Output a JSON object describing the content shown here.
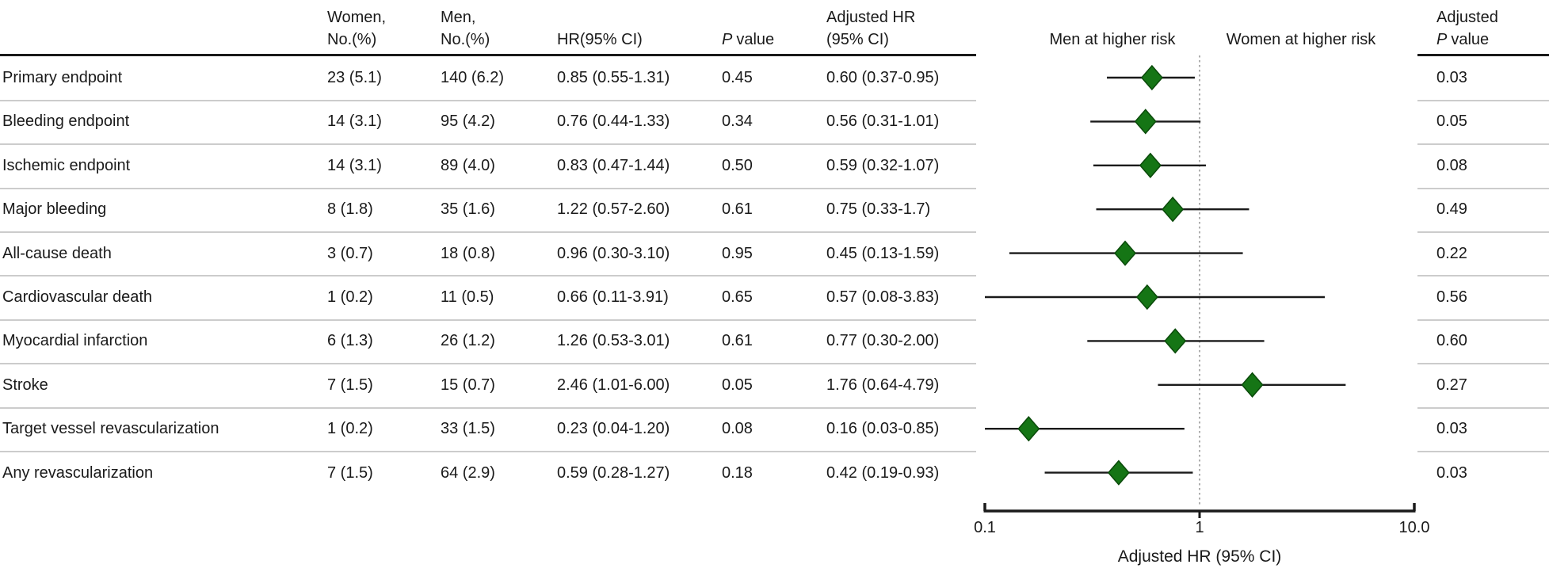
{
  "table": {
    "headers": {
      "women_l1": "Women,",
      "women_l2": "No.(%)",
      "men_l1": "Men,",
      "men_l2": "No.(%)",
      "hr": "HR(95% CI)",
      "p_italic": "P",
      "p_rest": "value",
      "adj_hr_l1": "Adjusted HR",
      "adj_hr_l2": "(95% CI)",
      "adj_p_l1": "Adjusted",
      "adj_p_italic": "P",
      "adj_p_rest": "value"
    },
    "rows": [
      {
        "endpoint": "Primary endpoint",
        "women": "23 (5.1)",
        "men": "140 (6.2)",
        "hr_ci": "0.85 (0.55-1.31)",
        "p": "0.45",
        "adj_hr_ci": "0.60 (0.37-0.95)",
        "adj_p": "0.03"
      },
      {
        "endpoint": "Bleeding endpoint",
        "women": "14 (3.1)",
        "men": "95 (4.2)",
        "hr_ci": "0.76 (0.44-1.33)",
        "p": "0.34",
        "adj_hr_ci": "0.56 (0.31-1.01)",
        "adj_p": "0.05"
      },
      {
        "endpoint": "Ischemic endpoint",
        "women": "14 (3.1)",
        "men": "89 (4.0)",
        "hr_ci": "0.83 (0.47-1.44)",
        "p": "0.50",
        "adj_hr_ci": "0.59 (0.32-1.07)",
        "adj_p": "0.08"
      },
      {
        "endpoint": "Major bleeding",
        "women": "8 (1.8)",
        "men": "35 (1.6)",
        "hr_ci": "1.22 (0.57-2.60)",
        "p": "0.61",
        "adj_hr_ci": "0.75 (0.33-1.7)",
        "adj_p": "0.49"
      },
      {
        "endpoint": "All-cause death",
        "women": "3 (0.7)",
        "men": "18 (0.8)",
        "hr_ci": "0.96 (0.30-3.10)",
        "p": "0.95",
        "adj_hr_ci": "0.45 (0.13-1.59)",
        "adj_p": "0.22"
      },
      {
        "endpoint": "Cardiovascular death",
        "women": "1 (0.2)",
        "men": "11 (0.5)",
        "hr_ci": "0.66 (0.11-3.91)",
        "p": "0.65",
        "adj_hr_ci": "0.57 (0.08-3.83)",
        "adj_p": "0.56"
      },
      {
        "endpoint": "Myocardial infarction",
        "women": "6 (1.3)",
        "men": "26 (1.2)",
        "hr_ci": "1.26 (0.53-3.01)",
        "p": "0.61",
        "adj_hr_ci": "0.77 (0.30-2.00)",
        "adj_p": "0.60"
      },
      {
        "endpoint": "Stroke",
        "women": "7 (1.5)",
        "men": "15 (0.7)",
        "hr_ci": "2.46 (1.01-6.00)",
        "p": "0.05",
        "adj_hr_ci": "1.76 (0.64-4.79)",
        "adj_p": "0.27"
      },
      {
        "endpoint": "Target vessel revascularization",
        "women": "1 (0.2)",
        "men": "33 (1.5)",
        "hr_ci": "0.23 (0.04-1.20)",
        "p": "0.08",
        "adj_hr_ci": "0.16 (0.03-0.85)",
        "adj_p": "0.03"
      },
      {
        "endpoint": "Any revascularization",
        "women": "7 (1.5)",
        "men": "64 (2.9)",
        "hr_ci": "0.59 (0.28-1.27)",
        "p": "0.18",
        "adj_hr_ci": "0.42 (0.19-0.93)",
        "adj_p": "0.03"
      }
    ]
  },
  "chart_data": {
    "type": "scatter",
    "variant": "forest-plot",
    "title": "",
    "xlabel": "Adjusted HR (95% CI)",
    "ylabel": "",
    "x_scale": "log",
    "xlim": [
      0.1,
      10
    ],
    "x_ticks": [
      0.1,
      1,
      10
    ],
    "x_tick_labels": [
      "0.1",
      "1",
      "10.0"
    ],
    "reference_line_x": 1,
    "left_region_label": "Men at higher risk",
    "right_region_label": "Women at higher risk",
    "grid": false,
    "categories": [
      "Primary endpoint",
      "Bleeding endpoint",
      "Ischemic endpoint",
      "Major bleeding",
      "All-cause death",
      "Cardiovascular death",
      "Myocardial infarction",
      "Stroke",
      "Target vessel revascularization",
      "Any revascularization"
    ],
    "series": [
      {
        "name": "Adjusted HR",
        "values": [
          0.6,
          0.56,
          0.59,
          0.75,
          0.45,
          0.57,
          0.77,
          1.76,
          0.16,
          0.42
        ],
        "ci_lower": [
          0.37,
          0.31,
          0.32,
          0.33,
          0.13,
          0.08,
          0.3,
          0.64,
          0.03,
          0.19
        ],
        "ci_upper": [
          0.95,
          1.01,
          1.07,
          1.7,
          1.59,
          3.83,
          2.0,
          4.79,
          0.85,
          0.93
        ]
      }
    ],
    "marker": {
      "shape": "diamond",
      "fill": "#157515",
      "stroke": "#0a4a0a"
    },
    "colors": {
      "ci_line": "#1a1a1a",
      "reference_line": "#9a9a9a",
      "axis": "#1a1a1a"
    }
  }
}
